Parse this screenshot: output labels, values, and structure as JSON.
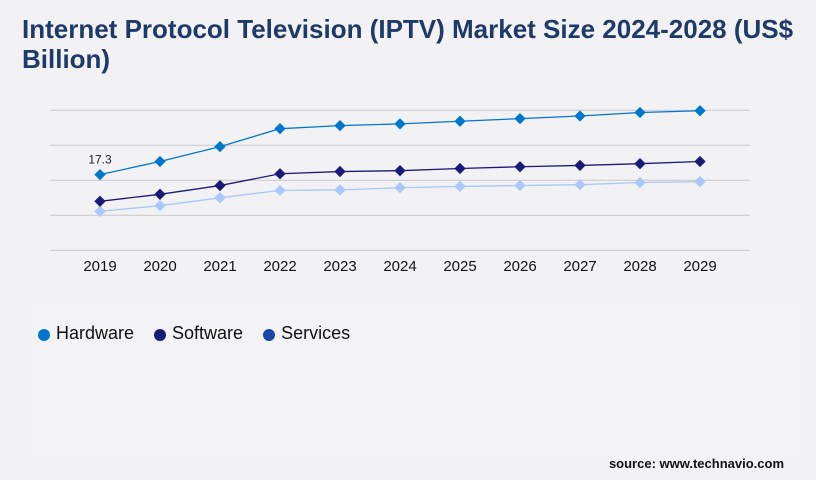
{
  "title": "Internet Protocol Television (IPTV) Market Size 2024-2028 (US$ Billion)",
  "source": "source: www.technavio.com",
  "chart_data": {
    "type": "line",
    "title": "Internet Protocol Television (IPTV) Market Size 2024-2028 (US$ Billion)",
    "x": [
      "2019",
      "2020",
      "2021",
      "2022",
      "2023",
      "2024",
      "2025",
      "2026",
      "2027",
      "2028",
      "2029"
    ],
    "ylim": [
      0,
      32
    ],
    "grid": true,
    "y_tick_labels_shown": false,
    "legend_placement": "bottom-left",
    "annotations": [
      {
        "series": "Hardware",
        "x": "2019",
        "text": "17.3"
      }
    ],
    "series": [
      {
        "name": "Hardware",
        "color": "#0077cc",
        "legend_color": "#0077cc",
        "values": [
          17.3,
          20.3,
          23.7,
          27.8,
          28.5,
          28.9,
          29.5,
          30.1,
          30.7,
          31.5,
          31.9
        ]
      },
      {
        "name": "Software",
        "color": "#1a1a78",
        "legend_color": "#1a1a78",
        "values": [
          11.2,
          12.8,
          14.8,
          17.5,
          18.0,
          18.2,
          18.7,
          19.1,
          19.4,
          19.8,
          20.3
        ]
      },
      {
        "name": "Services",
        "color": "#aac8fc",
        "legend_color": "#1c47a6",
        "values": [
          8.9,
          10.2,
          12.0,
          13.7,
          13.8,
          14.3,
          14.6,
          14.8,
          15.0,
          15.5,
          15.7
        ]
      }
    ]
  }
}
